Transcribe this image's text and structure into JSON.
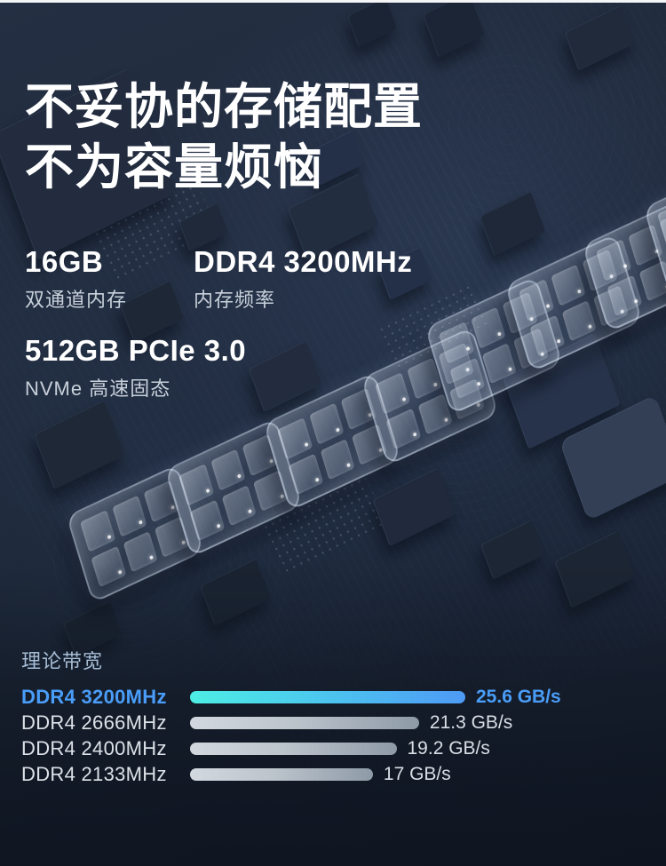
{
  "hero": {
    "title_line1": "不妥协的存储配置",
    "title_line2": "不为容量烦恼"
  },
  "specs": [
    {
      "value": "16GB",
      "label": "双通道内存"
    },
    {
      "value": "DDR4 3200MHz",
      "label": "内存频率"
    },
    {
      "value": "512GB PCIe 3.0",
      "label": "NVMe 高速固态"
    }
  ],
  "chart_data": {
    "type": "bar",
    "orientation": "horizontal",
    "title": "理论带宽",
    "categories": [
      "DDR4 3200MHz",
      "DDR4 2666MHz",
      "DDR4 2400MHz",
      "DDR4 2133MHz"
    ],
    "values": [
      25.6,
      21.3,
      19.2,
      17
    ],
    "value_labels": [
      "25.6 GB/s",
      "21.3 GB/s",
      "19.2 GB/s",
      "17 GB/s"
    ],
    "unit": "GB/s",
    "xlim": [
      0,
      25.6
    ],
    "grid": false,
    "legend": false,
    "highlight_index": 0
  },
  "colors": {
    "accent_blue": "#4a9df8",
    "bar_gradient_highlight": [
      "#4deee4",
      "#4e9af5"
    ],
    "bar_gradient_default": [
      "#d2d8de",
      "#8e9aa7"
    ],
    "background_navy": "#1c2636",
    "heading_white": "#ffffff",
    "sub_label_gray": "#c8d0da",
    "chart_title_blue_gray": "#a6bdd6",
    "top_strip_white": "#f3f5f7"
  }
}
